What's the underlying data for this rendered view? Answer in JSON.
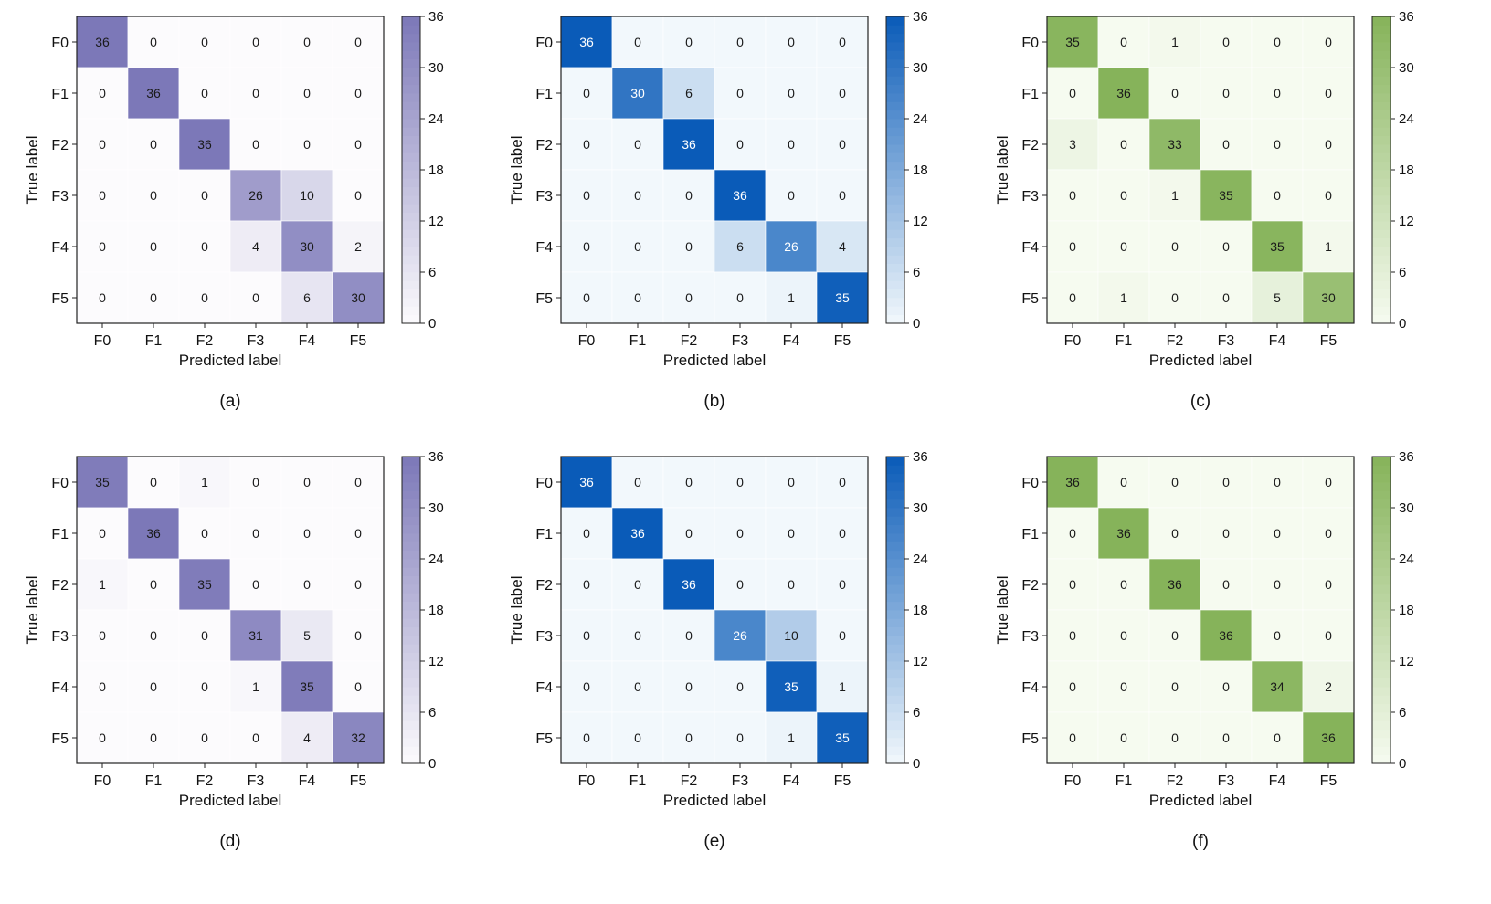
{
  "figure": {
    "panel_labels": [
      "(a)",
      "(b)",
      "(c)",
      "(d)",
      "(e)",
      "(f)"
    ]
  },
  "chart_data": [
    {
      "type": "heatmap",
      "panel": "(a)",
      "xlabel": "Predicted label",
      "ylabel": "True label",
      "x_categories": [
        "F0",
        "F1",
        "F2",
        "F3",
        "F4",
        "F5"
      ],
      "y_categories": [
        "F0",
        "F1",
        "F2",
        "F3",
        "F4",
        "F5"
      ],
      "values": [
        [
          36,
          0,
          0,
          0,
          0,
          0
        ],
        [
          0,
          36,
          0,
          0,
          0,
          0
        ],
        [
          0,
          0,
          36,
          0,
          0,
          0
        ],
        [
          0,
          0,
          0,
          26,
          10,
          0
        ],
        [
          0,
          0,
          0,
          4,
          30,
          2
        ],
        [
          0,
          0,
          0,
          0,
          6,
          30
        ]
      ],
      "colorbar": {
        "ticks": [
          0,
          6,
          12,
          18,
          24,
          30,
          36
        ],
        "range": [
          0,
          36
        ],
        "low_color": "#fcfbfd",
        "high_color": "#7c78b8"
      }
    },
    {
      "type": "heatmap",
      "panel": "(b)",
      "xlabel": "Predicted label",
      "ylabel": "True label",
      "x_categories": [
        "F0",
        "F1",
        "F2",
        "F3",
        "F4",
        "F5"
      ],
      "y_categories": [
        "F0",
        "F1",
        "F2",
        "F3",
        "F4",
        "F5"
      ],
      "values": [
        [
          36,
          0,
          0,
          0,
          0,
          0
        ],
        [
          0,
          30,
          6,
          0,
          0,
          0
        ],
        [
          0,
          0,
          36,
          0,
          0,
          0
        ],
        [
          0,
          0,
          0,
          36,
          0,
          0
        ],
        [
          0,
          0,
          0,
          6,
          26,
          4
        ],
        [
          0,
          0,
          0,
          0,
          1,
          35
        ]
      ],
      "colorbar": {
        "ticks": [
          0,
          6,
          12,
          18,
          24,
          30,
          36
        ],
        "range": [
          0,
          36
        ],
        "low_color": "#f2f8fc",
        "high_color": "#0a5bb8"
      }
    },
    {
      "type": "heatmap",
      "panel": "(c)",
      "xlabel": "Predicted label",
      "ylabel": "True label",
      "x_categories": [
        "F0",
        "F1",
        "F2",
        "F3",
        "F4",
        "F5"
      ],
      "y_categories": [
        "F0",
        "F1",
        "F2",
        "F3",
        "F4",
        "F5"
      ],
      "values": [
        [
          35,
          0,
          1,
          0,
          0,
          0
        ],
        [
          0,
          36,
          0,
          0,
          0,
          0
        ],
        [
          3,
          0,
          33,
          0,
          0,
          0
        ],
        [
          0,
          0,
          1,
          35,
          0,
          0
        ],
        [
          0,
          0,
          0,
          0,
          35,
          1
        ],
        [
          0,
          1,
          0,
          0,
          5,
          30
        ]
      ],
      "colorbar": {
        "ticks": [
          0,
          6,
          12,
          18,
          24,
          30,
          36
        ],
        "range": [
          0,
          36
        ],
        "low_color": "#f6fbf0",
        "high_color": "#86b35a"
      }
    },
    {
      "type": "heatmap",
      "panel": "(d)",
      "xlabel": "Predicted label",
      "ylabel": "True label",
      "x_categories": [
        "F0",
        "F1",
        "F2",
        "F3",
        "F4",
        "F5"
      ],
      "y_categories": [
        "F0",
        "F1",
        "F2",
        "F3",
        "F4",
        "F5"
      ],
      "values": [
        [
          35,
          0,
          1,
          0,
          0,
          0
        ],
        [
          0,
          36,
          0,
          0,
          0,
          0
        ],
        [
          1,
          0,
          35,
          0,
          0,
          0
        ],
        [
          0,
          0,
          0,
          31,
          5,
          0
        ],
        [
          0,
          0,
          0,
          1,
          35,
          0
        ],
        [
          0,
          0,
          0,
          0,
          4,
          32
        ]
      ],
      "colorbar": {
        "ticks": [
          0,
          6,
          12,
          18,
          24,
          30,
          36
        ],
        "range": [
          0,
          36
        ],
        "low_color": "#fcfbfd",
        "high_color": "#7c78b8"
      }
    },
    {
      "type": "heatmap",
      "panel": "(e)",
      "xlabel": "Predicted label",
      "ylabel": "True label",
      "x_categories": [
        "F0",
        "F1",
        "F2",
        "F3",
        "F4",
        "F5"
      ],
      "y_categories": [
        "F0",
        "F1",
        "F2",
        "F3",
        "F4",
        "F5"
      ],
      "values": [
        [
          36,
          0,
          0,
          0,
          0,
          0
        ],
        [
          0,
          36,
          0,
          0,
          0,
          0
        ],
        [
          0,
          0,
          36,
          0,
          0,
          0
        ],
        [
          0,
          0,
          0,
          26,
          10,
          0
        ],
        [
          0,
          0,
          0,
          0,
          35,
          1
        ],
        [
          0,
          0,
          0,
          0,
          1,
          35
        ]
      ],
      "colorbar": {
        "ticks": [
          0,
          6,
          12,
          18,
          24,
          30,
          36
        ],
        "range": [
          0,
          36
        ],
        "low_color": "#f2f8fc",
        "high_color": "#0a5bb8"
      }
    },
    {
      "type": "heatmap",
      "panel": "(f)",
      "xlabel": "Predicted label",
      "ylabel": "True label",
      "x_categories": [
        "F0",
        "F1",
        "F2",
        "F3",
        "F4",
        "F5"
      ],
      "y_categories": [
        "F0",
        "F1",
        "F2",
        "F3",
        "F4",
        "F5"
      ],
      "values": [
        [
          36,
          0,
          0,
          0,
          0,
          0
        ],
        [
          0,
          36,
          0,
          0,
          0,
          0
        ],
        [
          0,
          0,
          36,
          0,
          0,
          0
        ],
        [
          0,
          0,
          0,
          36,
          0,
          0
        ],
        [
          0,
          0,
          0,
          0,
          34,
          2
        ],
        [
          0,
          0,
          0,
          0,
          0,
          36
        ]
      ],
      "colorbar": {
        "ticks": [
          0,
          6,
          12,
          18,
          24,
          30,
          36
        ],
        "range": [
          0,
          36
        ],
        "low_color": "#f6fbf0",
        "high_color": "#86b35a"
      }
    }
  ]
}
